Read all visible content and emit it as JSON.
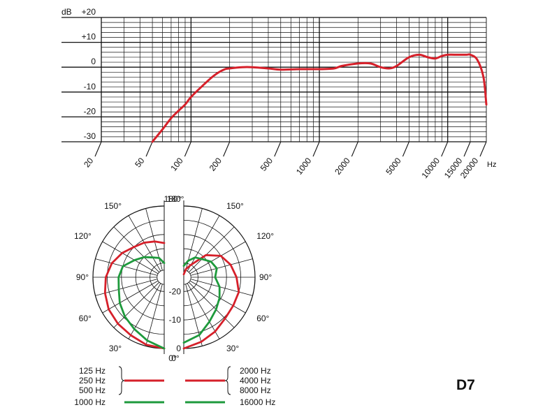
{
  "chart_data": [
    {
      "type": "line",
      "title": "",
      "xlabel": "Hz",
      "ylabel": "dB",
      "xscale": "log",
      "xlim": [
        20,
        20000
      ],
      "ylim": [
        -30,
        20
      ],
      "grid": true,
      "x_tick_labels": [
        "20",
        "50",
        "100",
        "200",
        "500",
        "1000",
        "2000",
        "5000",
        "10000",
        "15000",
        "20000"
      ],
      "x_ticks": [
        20,
        50,
        100,
        200,
        500,
        1000,
        2000,
        5000,
        10000,
        15000,
        20000
      ],
      "y_tick_labels": [
        "+20",
        "+10",
        "0",
        "-10",
        "-20",
        "-30"
      ],
      "y_ticks": [
        20,
        10,
        0,
        -10,
        -20,
        -30
      ],
      "color": "#d6202a",
      "series": [
        {
          "x": [
            50,
            60,
            70,
            80,
            90,
            100,
            120,
            150,
            180,
            200,
            250,
            300,
            400,
            500,
            700,
            1000,
            1300,
            1500,
            2000,
            2500,
            3000,
            3500,
            4000,
            5000,
            6000,
            7000,
            8000,
            9000,
            10000,
            12000,
            14000,
            15000,
            17000,
            19000,
            20000
          ],
          "y": [
            -30,
            -25,
            -20.5,
            -17.5,
            -15,
            -12,
            -8,
            -3.5,
            -1,
            -0.5,
            0,
            0,
            -0.5,
            -1,
            -0.8,
            -0.8,
            -0.5,
            0.5,
            1.5,
            1.5,
            0,
            -0.5,
            0.5,
            4,
            5,
            4,
            3.5,
            4.5,
            5,
            5,
            5,
            5,
            3,
            -4,
            -15
          ]
        }
      ]
    },
    {
      "type": "polar",
      "radial_tick_labels": [
        "-20",
        "-10",
        "0"
      ],
      "radial_range": [
        -25,
        0
      ],
      "angle_labels": [
        "180°",
        "150°",
        "120°",
        "90°",
        "60°",
        "30°",
        "0°",
        "180°",
        "150°",
        "120°",
        "90°",
        "60°",
        "30°",
        "0°"
      ],
      "legend": [
        {
          "labels": [
            "125 Hz",
            "250 Hz",
            "500 Hz"
          ],
          "color": "#d6202a"
        },
        {
          "labels": [
            "1000 Hz"
          ],
          "color": "#1e9a3c"
        },
        {
          "labels": [
            "2000 Hz",
            "4000 Hz",
            "8000 Hz"
          ],
          "color": "#d6202a"
        },
        {
          "labels": [
            "16000 Hz"
          ],
          "color": "#1e9a3c"
        }
      ],
      "series": [
        {
          "side": "left",
          "color": "#d6202a",
          "angles": [
            0,
            15,
            30,
            45,
            60,
            75,
            90,
            105,
            120,
            135,
            150,
            165,
            180
          ],
          "values": [
            0,
            -0.5,
            -1.5,
            -2,
            -2.5,
            -3.5,
            -4.5,
            -6,
            -8,
            -10,
            -11,
            -12,
            -13
          ]
        },
        {
          "side": "left",
          "color": "#1e9a3c",
          "angles": [
            0,
            15,
            30,
            45,
            60,
            75,
            90,
            105,
            120,
            135,
            150,
            165,
            180
          ],
          "values": [
            0,
            -2,
            -4,
            -5.5,
            -7,
            -8.5,
            -9,
            -10,
            -13,
            -15,
            -17,
            -18,
            -20
          ]
        },
        {
          "side": "right",
          "color": "#d6202a",
          "angles": [
            0,
            15,
            30,
            45,
            60,
            75,
            90,
            105,
            120,
            135,
            150,
            165,
            180
          ],
          "values": [
            0,
            -1.5,
            -3,
            -4.5,
            -5,
            -5,
            -6.5,
            -8,
            -10,
            -14,
            -20,
            -22,
            -24
          ]
        },
        {
          "side": "right",
          "color": "#1e9a3c",
          "angles": [
            0,
            15,
            30,
            45,
            60,
            75,
            90,
            105,
            120,
            135,
            150,
            165,
            180
          ],
          "values": [
            -2,
            -4,
            -7,
            -9,
            -10.5,
            -12,
            -14,
            -13,
            -14,
            -16,
            -17,
            -19,
            -21
          ]
        }
      ]
    }
  ],
  "model_label": "D7"
}
